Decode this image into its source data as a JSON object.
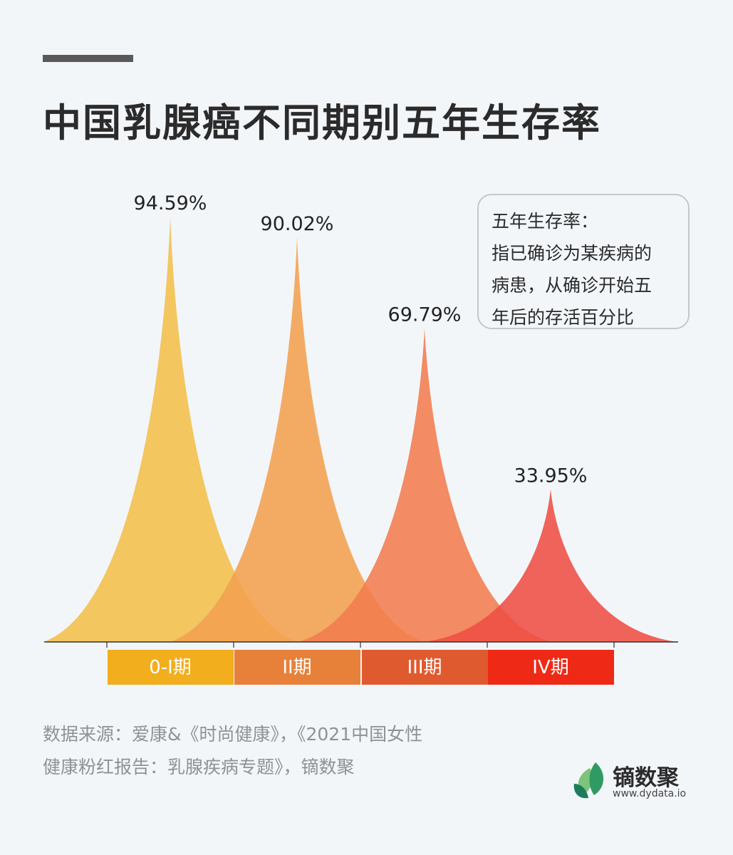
{
  "title": "中国乳腺癌不同期别五年生存率",
  "note": {
    "lines": [
      "五年生存率：",
      "指已确诊为某疾病的",
      "病患，从确诊开始五",
      "年后的存活百分比"
    ]
  },
  "source": {
    "lines": [
      "数据来源：爱康&《时尚健康》，《2021中国女性",
      "健康粉红报告：乳腺疾病专题》，镝数聚"
    ]
  },
  "logo": {
    "name": "镝数聚",
    "url": "www.dydata.io"
  },
  "chart_data": {
    "type": "area",
    "categories": [
      "0-I期",
      "II期",
      "III期",
      "IV期"
    ],
    "values": [
      94.59,
      90.02,
      69.79,
      33.95
    ],
    "value_labels": [
      "94.59%",
      "90.02%",
      "69.79%",
      "33.95%"
    ],
    "ylim": [
      0,
      100
    ],
    "grid": false,
    "legend": "none",
    "peak_colors": [
      "#f2bf4a",
      "#f3a04e",
      "#f27c4e",
      "#ef4f43"
    ],
    "band_colors": [
      "#f2ae1c",
      "#e7813a",
      "#e05a2f",
      "#ee2a17"
    ]
  }
}
